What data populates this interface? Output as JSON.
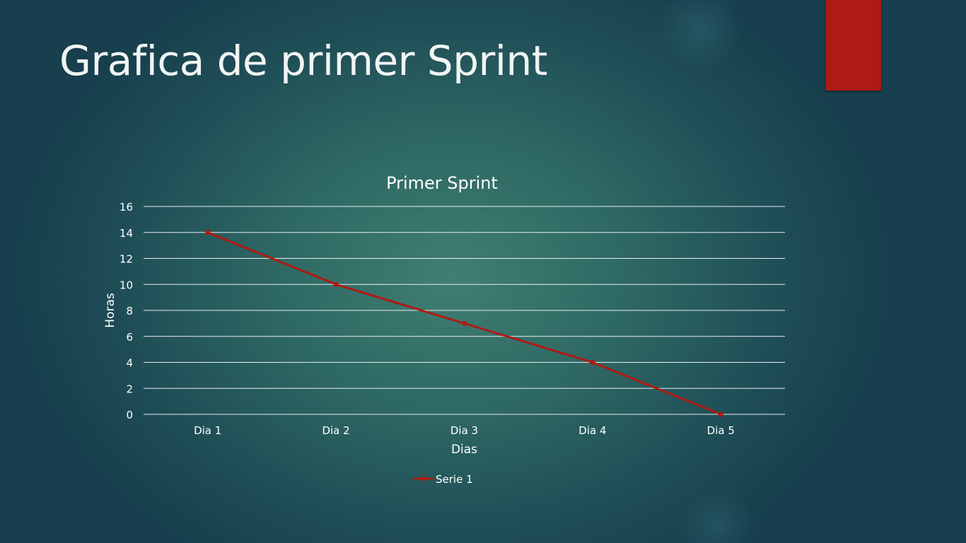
{
  "slide": {
    "title": "Grafica de primer Sprint",
    "accent_color": "#b01914"
  },
  "chart_data": {
    "type": "line",
    "title": "Primer Sprint",
    "xlabel": "Dias",
    "ylabel": "Horas",
    "categories": [
      "Dia 1",
      "Dia 2",
      "Dia 3",
      "Dia 4",
      "Dia 5"
    ],
    "ylim": [
      0,
      16
    ],
    "yticks": [
      "0",
      "2",
      "4",
      "6",
      "8",
      "10",
      "12",
      "14",
      "16"
    ],
    "grid": true,
    "legend_position": "bottom",
    "series": [
      {
        "name": "Serie 1",
        "values": [
          14,
          10,
          7,
          4,
          0
        ],
        "color": "#b01914"
      }
    ]
  }
}
